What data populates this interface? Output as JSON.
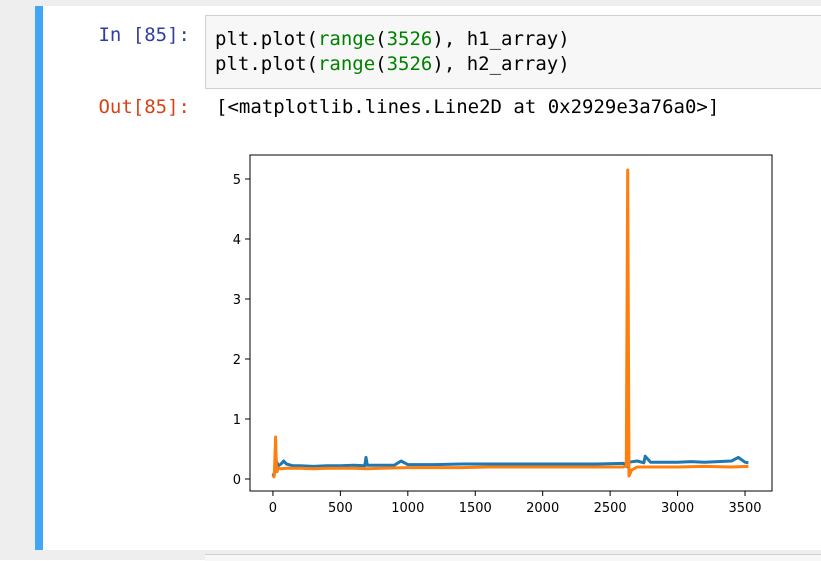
{
  "cell": {
    "in_prompt": "In [85]:",
    "out_prompt": "Out[85]:",
    "code": {
      "line1": {
        "pre": "plt.plot(",
        "fn": "range",
        "arg_open": "(",
        "num": "3526",
        "post": "), h1_array)"
      },
      "line2": {
        "pre": "plt.plot(",
        "fn": "range",
        "arg_open": "(",
        "num": "3526",
        "post": "), h2_array)"
      }
    },
    "output_text": "[<matplotlib.lines.Line2D at 0x2929e3a76a0>]"
  },
  "colors": {
    "cell_selected_bar": "#42a5f5",
    "in_prompt": "#303f9f",
    "out_prompt": "#d84315",
    "keyword": "#008000",
    "series1": "#1f77b4",
    "series2": "#ff7f0e"
  },
  "chart_data": {
    "type": "line",
    "title": "",
    "xlabel": "",
    "ylabel": "",
    "xlim": [
      -170,
      3700
    ],
    "ylim": [
      -0.2,
      5.4
    ],
    "xticks": [
      0,
      500,
      1000,
      1500,
      2000,
      2500,
      3000,
      3500
    ],
    "xtick_labels": [
      "0",
      "500",
      "1000",
      "1500",
      "2000",
      "2500",
      "3000",
      "3500"
    ],
    "yticks": [
      0,
      1,
      2,
      3,
      4,
      5
    ],
    "ytick_labels": [
      "0",
      "1",
      "2",
      "3",
      "4",
      "5"
    ],
    "grid": false,
    "series": [
      {
        "color": "#1f77b4",
        "x": [
          0,
          10,
          25,
          40,
          60,
          80,
          100,
          150,
          200,
          300,
          400,
          500,
          600,
          680,
          690,
          700,
          800,
          900,
          950,
          1000,
          1200,
          1400,
          1600,
          1800,
          2000,
          2200,
          2400,
          2600,
          2630,
          2640,
          2700,
          2750,
          2760,
          2800,
          2900,
          3000,
          3100,
          3200,
          3300,
          3400,
          3450,
          3500,
          3525
        ],
        "y": [
          0.05,
          0.1,
          0.3,
          0.22,
          0.25,
          0.3,
          0.25,
          0.22,
          0.22,
          0.21,
          0.22,
          0.22,
          0.23,
          0.22,
          0.36,
          0.23,
          0.23,
          0.23,
          0.3,
          0.24,
          0.24,
          0.25,
          0.25,
          0.25,
          0.25,
          0.25,
          0.25,
          0.26,
          0.2,
          0.28,
          0.3,
          0.27,
          0.38,
          0.28,
          0.28,
          0.28,
          0.29,
          0.28,
          0.29,
          0.3,
          0.36,
          0.28,
          0.27
        ]
      },
      {
        "color": "#ff7f0e",
        "x": [
          0,
          10,
          20,
          25,
          30,
          40,
          60,
          100,
          200,
          300,
          400,
          500,
          600,
          700,
          800,
          1000,
          1200,
          1400,
          1600,
          1800,
          2000,
          2200,
          2400,
          2600,
          2620,
          2630,
          2640,
          2660,
          2700,
          2800,
          3000,
          3200,
          3400,
          3525
        ],
        "y": [
          0.02,
          0.05,
          0.7,
          0.25,
          0.12,
          0.18,
          0.17,
          0.18,
          0.18,
          0.17,
          0.18,
          0.18,
          0.18,
          0.17,
          0.18,
          0.19,
          0.19,
          0.19,
          0.2,
          0.2,
          0.2,
          0.2,
          0.2,
          0.2,
          0.22,
          5.15,
          0.05,
          0.15,
          0.2,
          0.2,
          0.2,
          0.21,
          0.2,
          0.21
        ]
      }
    ]
  }
}
